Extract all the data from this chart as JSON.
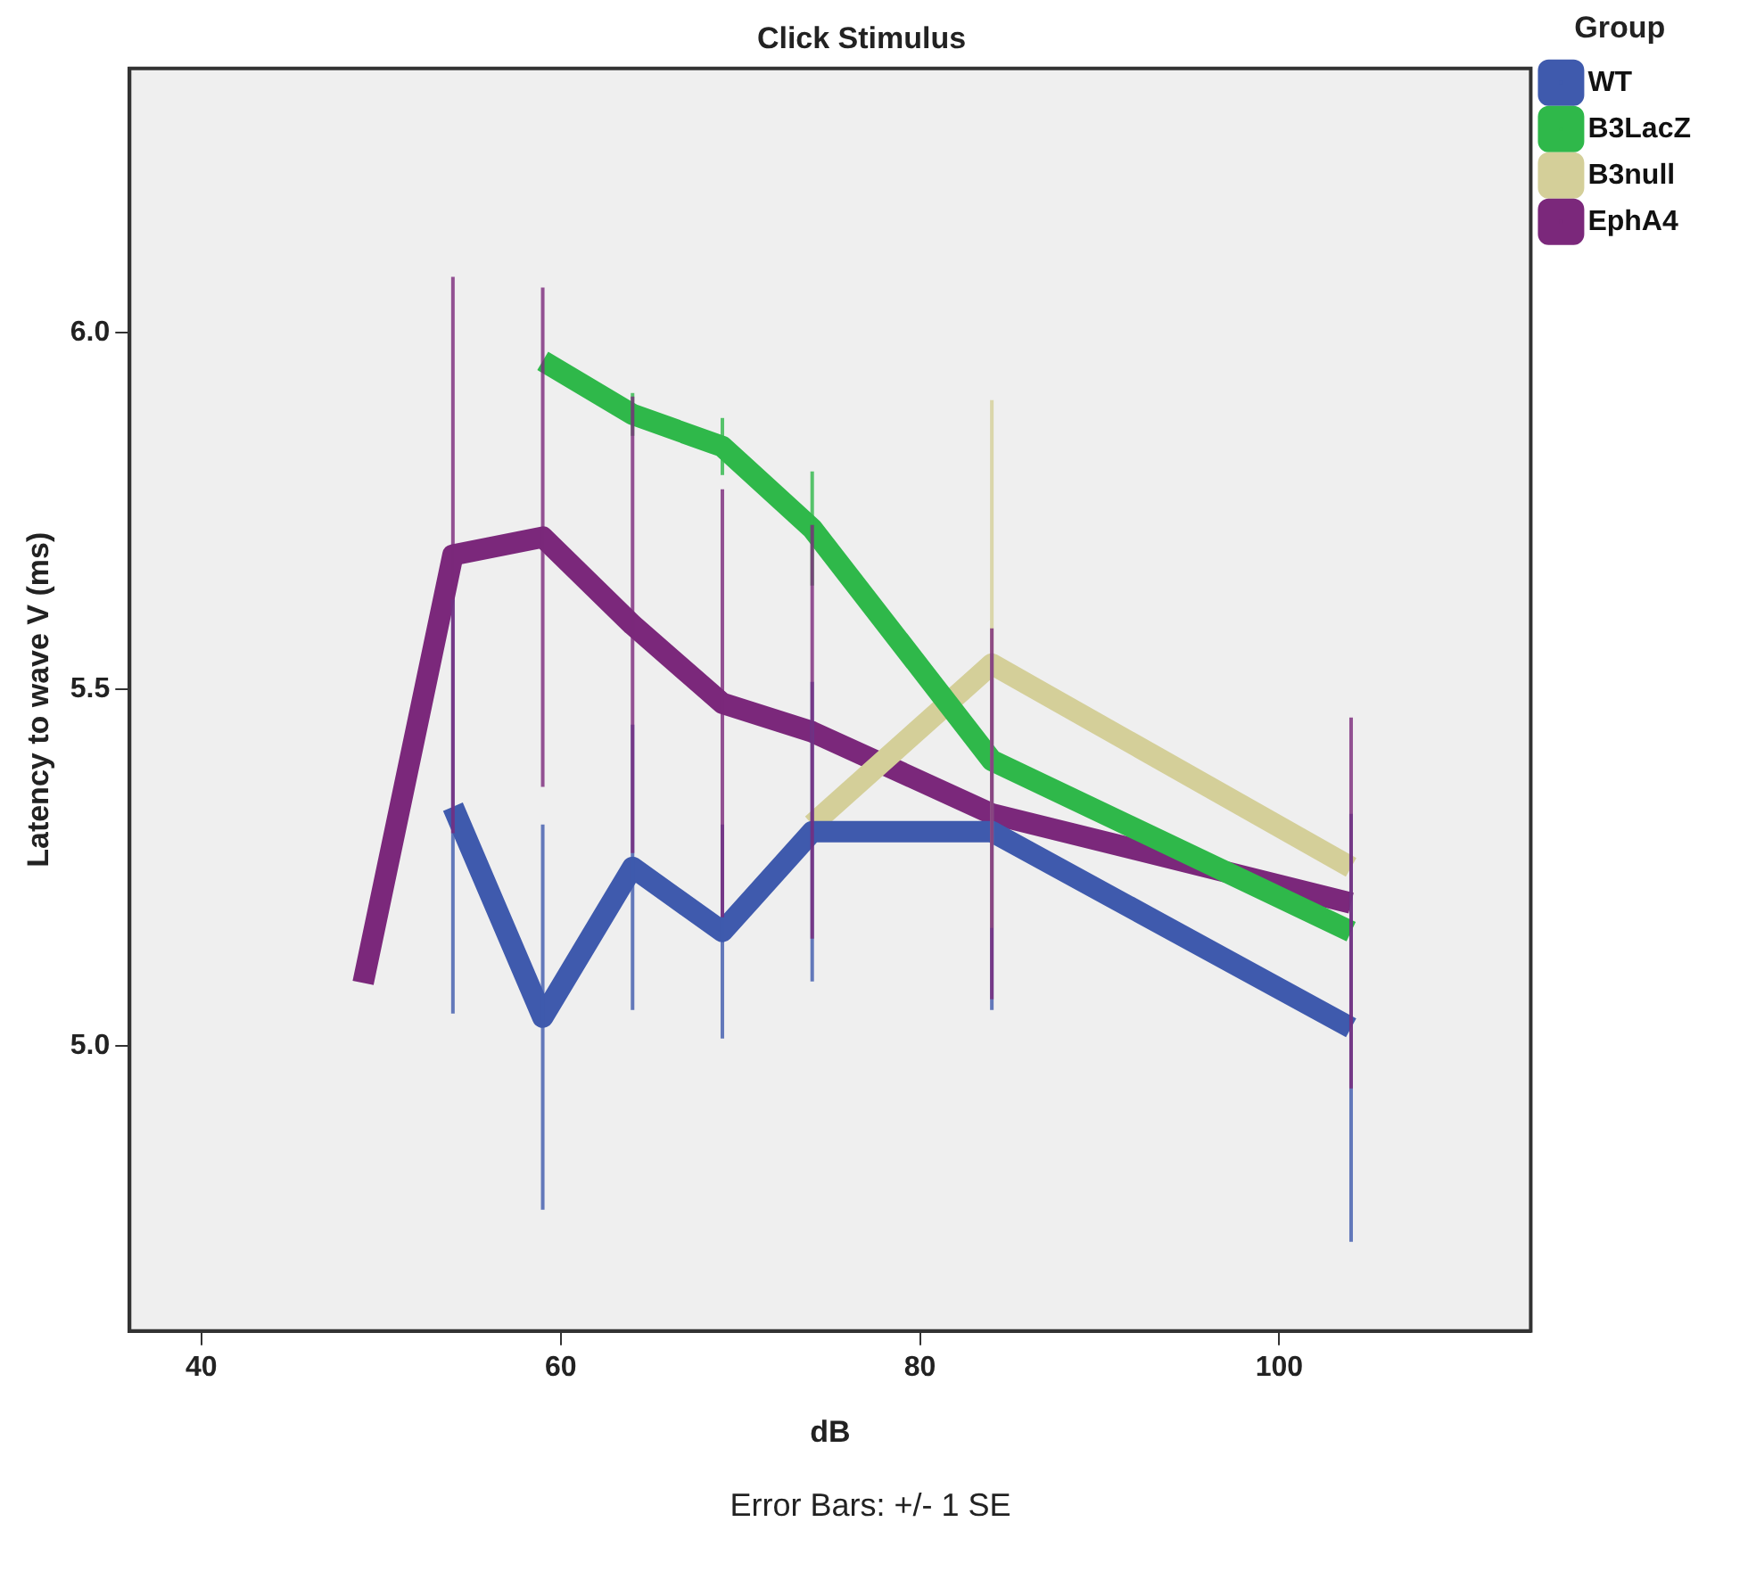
{
  "chart_data": {
    "type": "line",
    "title": "Click Stimulus",
    "xlabel": "dB",
    "ylabel": "Latency to wave V (ms)",
    "legend_title": "Group",
    "annotations": [
      "Error Bars: +/- 1 SE"
    ],
    "xlim": [
      36,
      114
    ],
    "xticks": [
      40,
      60,
      80,
      100
    ],
    "ylim": [
      4.6,
      6.37
    ],
    "yticks": [
      {
        "value": 5,
        "label": "5.0"
      },
      {
        "value": 5.5,
        "label": "5.5"
      },
      {
        "value": 6,
        "label": "6.0"
      }
    ],
    "grid": false,
    "legend": "right",
    "marker": "none",
    "line_style": "solid",
    "series": [
      {
        "name": "WT",
        "color": "#3f5aad",
        "x": [
          54,
          59,
          64,
          69,
          74,
          84,
          104
        ],
        "values": [
          5.335,
          5.04,
          5.25,
          5.16,
          5.3,
          5.3,
          5.025
        ],
        "errors": [
          0.29,
          0.27,
          0.2,
          0.15,
          0.21,
          0.25,
          0.3
        ]
      },
      {
        "name": "B3LacZ",
        "color": "#2fb84a",
        "x": [
          59,
          64,
          69,
          74,
          84,
          104
        ],
        "values": [
          5.96,
          5.885,
          5.84,
          5.725,
          5.4,
          5.16
        ],
        "errors": [
          null,
          0.03,
          0.04,
          0.08,
          null,
          null
        ]
      },
      {
        "name": "B3null",
        "color": "#d4cf99",
        "x": [
          74,
          84,
          104
        ],
        "values": [
          5.31,
          5.535,
          5.25
        ],
        "errors": [
          null,
          0.37,
          null
        ]
      },
      {
        "name": "EphA4",
        "color": "#7b287b",
        "x": [
          49,
          54,
          59,
          64,
          69,
          74,
          84,
          104
        ],
        "values": [
          5.088,
          5.688,
          5.713,
          5.59,
          5.48,
          5.44,
          5.325,
          5.2
        ],
        "errors": [
          null,
          0.39,
          0.35,
          0.32,
          0.3,
          0.29,
          0.26,
          0.26
        ]
      }
    ]
  }
}
